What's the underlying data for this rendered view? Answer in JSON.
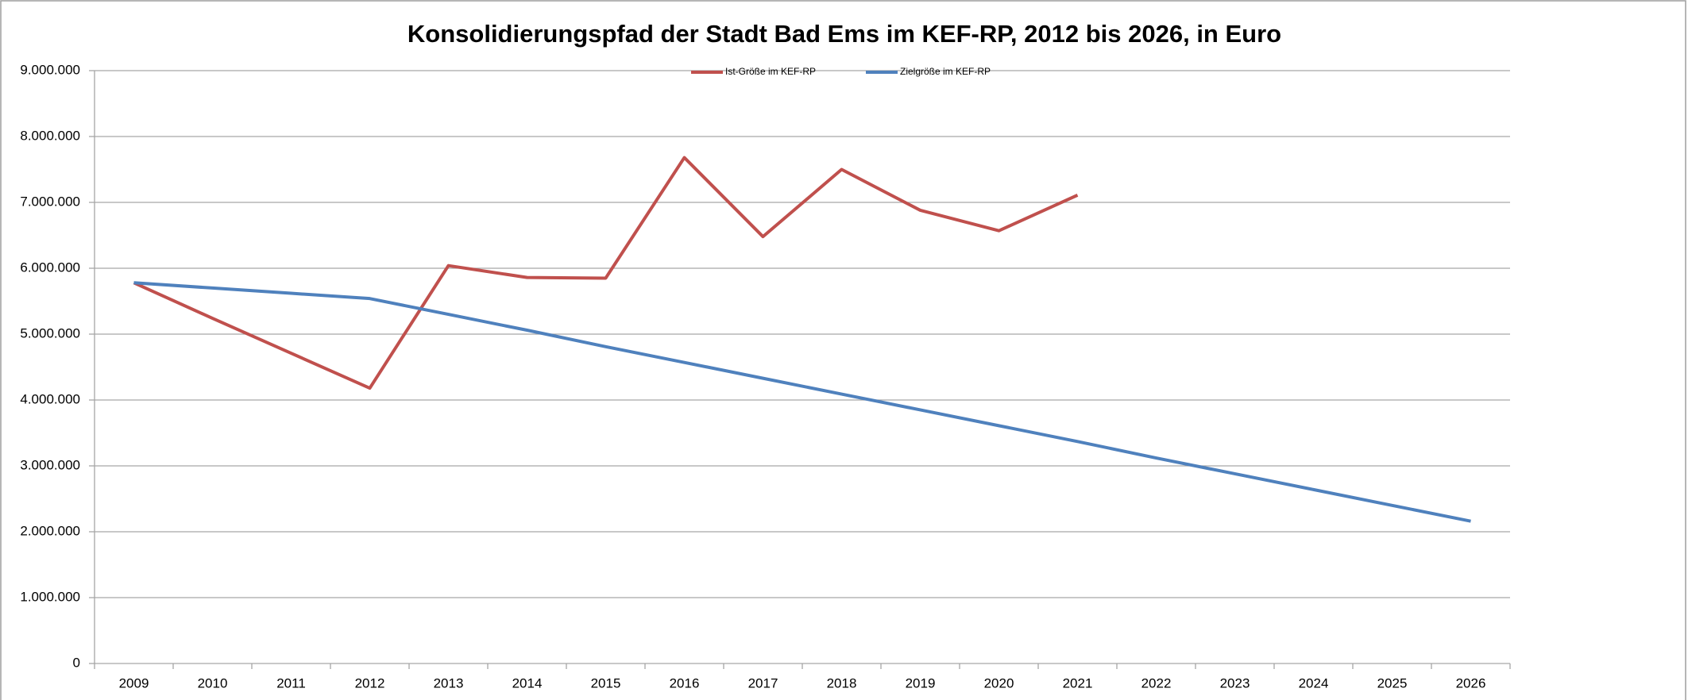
{
  "chart_data": {
    "type": "line",
    "title": "Konsolidierungspfad der Stadt Bad Ems im KEF-RP, 2012 bis 2026, in Euro",
    "categories": [
      "2009",
      "2010",
      "2011",
      "2012",
      "2013",
      "2014",
      "2015",
      "2016",
      "2017",
      "2018",
      "2019",
      "2020",
      "2021",
      "2022",
      "2023",
      "2024",
      "2025",
      "2026"
    ],
    "series": [
      {
        "name": "Ist-Größe im KEF-RP",
        "color": "#c0504d",
        "values": [
          5780000,
          5240000,
          4710000,
          4180000,
          6040000,
          5860000,
          5850000,
          7680000,
          6480000,
          7500000,
          6880000,
          6570000,
          7110000,
          null,
          null,
          null,
          null,
          null
        ]
      },
      {
        "name": "Zielgröße im KEF-RP",
        "color": "#4f81bd",
        "values": [
          5780000,
          5700000,
          5620000,
          5540000,
          5300000,
          5060000,
          4810000,
          4570000,
          4330000,
          4090000,
          3850000,
          3610000,
          3370000,
          3120000,
          2880000,
          2640000,
          2400000,
          2160000
        ]
      }
    ],
    "ylim": [
      0,
      9000000
    ],
    "yticks": [
      0,
      {
        "value": 1000000,
        "label": "1.000.000"
      },
      {
        "value": 2000000,
        "label": "2.000.000"
      },
      {
        "value": 3000000,
        "label": "3.000.000"
      },
      {
        "value": 4000000,
        "label": "4.000.000"
      },
      {
        "value": 5000000,
        "label": "5.000.000"
      },
      {
        "value": 6000000,
        "label": "6.000.000"
      },
      {
        "value": 7000000,
        "label": "7.000.000"
      },
      {
        "value": 8000000,
        "label": "8.000.000"
      },
      {
        "value": 9000000,
        "label": "9.000.000"
      }
    ],
    "grid": true,
    "legend": "top"
  }
}
